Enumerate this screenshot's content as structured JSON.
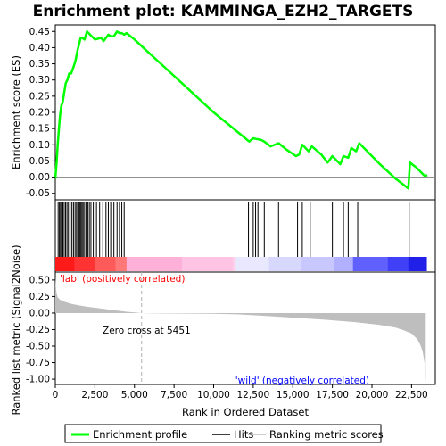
{
  "title": "Enrichment plot: KAMMINGA_EZH2_TARGETS",
  "colors": {
    "enrichment_line": "#00ff00",
    "hit_line": "#000000",
    "ranking_fill": "#bebebe",
    "positive_label": "#ff0000",
    "negative_label": "#0000ff",
    "zero_line": "#808080",
    "zero_cross_line": "#b0b0b0"
  },
  "chart_data": [
    {
      "type": "line",
      "name": "enrichment-profile",
      "ylabel": "Enrichment score (ES)",
      "xlim": [
        0,
        24000
      ],
      "ylim": [
        -0.07,
        0.47
      ],
      "yticks": [
        -0.05,
        0.0,
        0.05,
        0.1,
        0.15,
        0.2,
        0.25,
        0.3,
        0.35,
        0.4,
        0.45
      ],
      "ytick_labels": [
        "-0.05",
        "0.00",
        "0.05",
        "0.10",
        "0.15",
        "0.20",
        "0.25",
        "0.30",
        "0.35",
        "0.40",
        "0.45"
      ],
      "grid": false,
      "x": [
        0,
        90,
        150,
        230,
        300,
        380,
        460,
        560,
        660,
        760,
        880,
        1000,
        1150,
        1280,
        1400,
        1500,
        1600,
        1700,
        1850,
        2000,
        2100,
        2500,
        2900,
        3050,
        3200,
        3350,
        3500,
        3700,
        3900,
        4050,
        4200,
        4350,
        4500,
        5000,
        6000,
        7000,
        8000,
        9000,
        10000,
        11000,
        12000,
        12250,
        12500,
        12700,
        13000,
        13200,
        13600,
        14100,
        14600,
        15200,
        15400,
        15600,
        16000,
        16200,
        16800,
        17200,
        17500,
        18000,
        18200,
        18500,
        18700,
        19000,
        19200,
        19800,
        20500,
        21500,
        22300,
        22400,
        22800,
        23300,
        23500
      ],
      "y": [
        -0.005,
        0.05,
        0.1,
        0.15,
        0.19,
        0.22,
        0.23,
        0.26,
        0.29,
        0.3,
        0.32,
        0.32,
        0.34,
        0.36,
        0.39,
        0.41,
        0.43,
        0.43,
        0.425,
        0.45,
        0.445,
        0.425,
        0.43,
        0.42,
        0.43,
        0.44,
        0.435,
        0.435,
        0.45,
        0.445,
        0.445,
        0.44,
        0.445,
        0.425,
        0.38,
        0.335,
        0.29,
        0.245,
        0.2,
        0.16,
        0.12,
        0.11,
        0.12,
        0.118,
        0.115,
        0.11,
        0.095,
        0.105,
        0.085,
        0.065,
        0.07,
        0.1,
        0.08,
        0.095,
        0.07,
        0.045,
        0.065,
        0.04,
        0.065,
        0.06,
        0.09,
        0.08,
        0.105,
        0.075,
        0.04,
        -0.005,
        -0.035,
        0.045,
        0.03,
        0.005,
        0.005
      ]
    },
    {
      "type": "scatter",
      "name": "hits",
      "x": [
        180,
        260,
        330,
        400,
        480,
        560,
        650,
        740,
        830,
        940,
        1050,
        1150,
        1250,
        1340,
        1420,
        1500,
        1560,
        1620,
        1690,
        1760,
        1850,
        1950,
        2050,
        2150,
        2250,
        2400,
        2600,
        2800,
        3000,
        3200,
        3350,
        3500,
        3700,
        3900,
        4050,
        4200,
        4350,
        12200,
        12500,
        12650,
        12800,
        13200,
        14100,
        15300,
        15600,
        16100,
        17500,
        18200,
        18500,
        19100,
        22350
      ]
    },
    {
      "type": "area",
      "name": "ranking-metric",
      "xlabel": "Rank in Ordered Dataset",
      "ylabel": "Ranked list metric (Signal2Noise)",
      "xlim": [
        0,
        24000
      ],
      "ylim": [
        -1.08,
        0.62
      ],
      "xticks": [
        0,
        2500,
        5000,
        7500,
        10000,
        12500,
        15000,
        17500,
        20000,
        22500
      ],
      "xtick_labels": [
        "0",
        "2,500",
        "5,000",
        "7,500",
        "10,000",
        "12,500",
        "15,000",
        "17,500",
        "20,000",
        "22,500"
      ],
      "yticks": [
        -1.0,
        -0.75,
        -0.5,
        -0.25,
        0.0,
        0.25,
        0.5
      ],
      "ytick_labels": [
        "-1.00",
        "-0.75",
        "-0.50",
        "-0.25",
        "0.00",
        "0.25",
        "0.50"
      ],
      "x": [
        0,
        30,
        80,
        150,
        300,
        600,
        1000,
        1500,
        2000,
        2500,
        3000,
        3500,
        4000,
        4500,
        5000,
        5451,
        6000,
        8000,
        10000,
        11500,
        13000,
        15000,
        17000,
        19000,
        20500,
        21500,
        22000,
        22500,
        22800,
        23000,
        23200,
        23350,
        23400
      ],
      "values": [
        0.55,
        0.42,
        0.3,
        0.24,
        0.2,
        0.17,
        0.14,
        0.115,
        0.095,
        0.08,
        0.065,
        0.05,
        0.035,
        0.02,
        0.01,
        0.0,
        -0.003,
        -0.008,
        -0.012,
        -0.02,
        -0.04,
        -0.07,
        -0.1,
        -0.14,
        -0.18,
        -0.22,
        -0.26,
        -0.31,
        -0.38,
        -0.45,
        -0.58,
        -0.8,
        -1.05
      ]
    }
  ],
  "annotations": {
    "positive": "'lab' (positively correlated)",
    "negative": "'wild' (negatively correlated)",
    "zero_cross": "Zero cross at 5451",
    "zero_cross_x": 5451
  },
  "legend": {
    "placement": "bottom",
    "items": [
      {
        "label": "Enrichment profile",
        "kind": "line",
        "color": "#00ff00"
      },
      {
        "label": "Hits",
        "kind": "line",
        "color": "#000000"
      },
      {
        "label": "Ranking metric scores",
        "kind": "line",
        "color": "#bebebe"
      }
    ]
  }
}
